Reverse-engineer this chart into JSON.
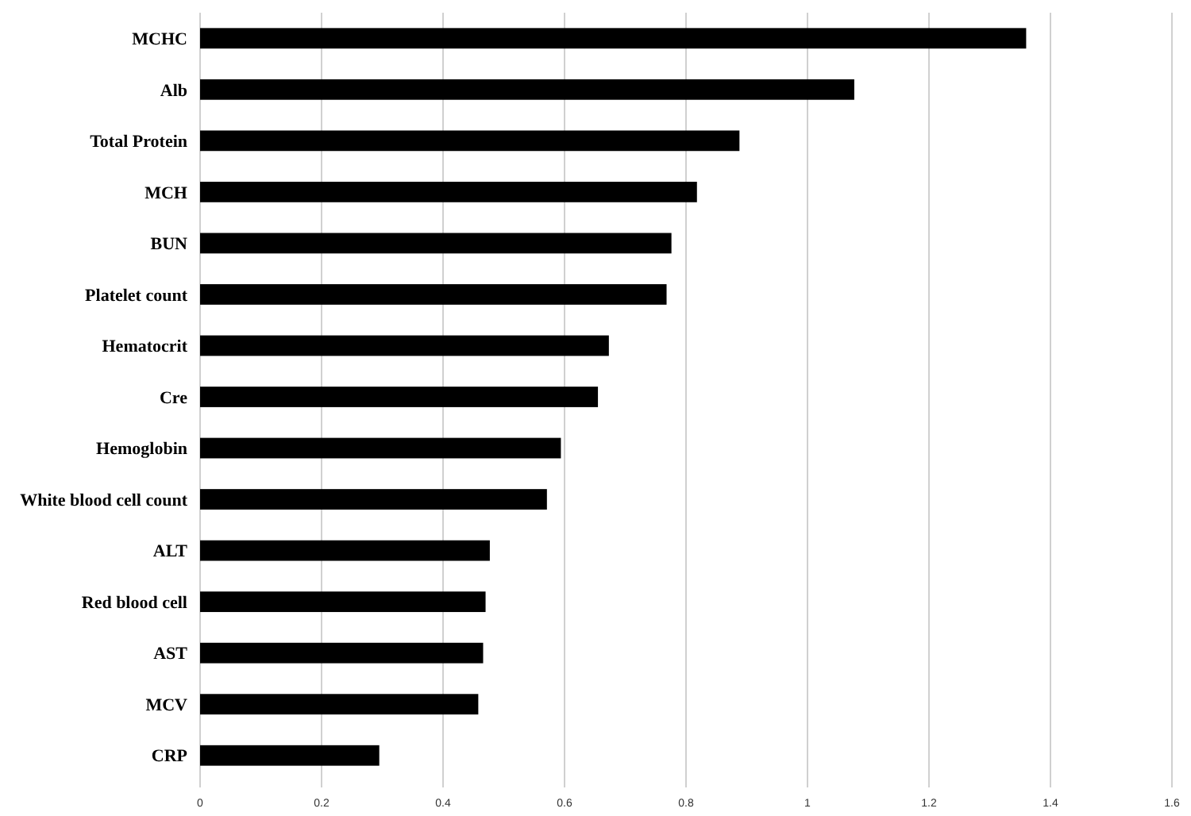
{
  "chart_data": {
    "type": "bar",
    "orientation": "horizontal",
    "categories": [
      "MCHC",
      "Alb",
      "Total Protein",
      "MCH",
      "BUN",
      "Platelet count",
      "Hematocrit",
      "Cre",
      "Hemoglobin",
      "White blood cell count",
      "ALT",
      "Red blood cell",
      "AST",
      "MCV",
      "CRP"
    ],
    "values": [
      1.36,
      1.077,
      0.888,
      0.818,
      0.776,
      0.768,
      0.673,
      0.655,
      0.594,
      0.571,
      0.477,
      0.47,
      0.466,
      0.458,
      0.295
    ],
    "color": "#000000",
    "xlim": [
      0,
      1.6
    ],
    "xticks": [
      0,
      0.2,
      0.4,
      0.6,
      0.8,
      1,
      1.2,
      1.4,
      1.6
    ],
    "grid": "x"
  }
}
